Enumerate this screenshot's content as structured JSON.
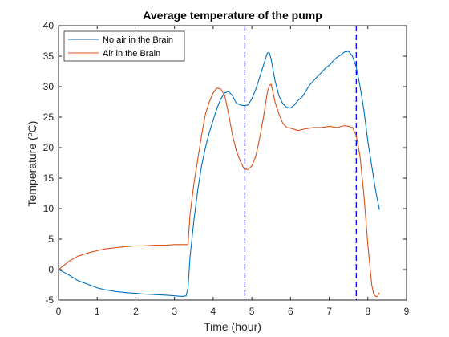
{
  "chart_data": {
    "type": "line",
    "title": "Average temperature of the pump",
    "xlabel": "Time (hour)",
    "ylabel_main": "Temperature (",
    "ylabel_sup": "o",
    "ylabel_end": "C)",
    "xlim": [
      0,
      9
    ],
    "ylim": [
      -5,
      40
    ],
    "xticks": [
      0,
      1,
      2,
      3,
      4,
      5,
      6,
      7,
      8,
      9
    ],
    "yticks": [
      -5,
      0,
      5,
      10,
      15,
      20,
      25,
      30,
      35,
      40
    ],
    "grid": false,
    "legend_position": "top-left",
    "vlines": [
      4.82,
      7.7
    ],
    "vline_color": "#0000ff",
    "series": [
      {
        "name": "No air in the Brain",
        "color": "#0072BD",
        "x": [
          0,
          0.1,
          0.3,
          0.5,
          0.8,
          1.0,
          1.2,
          1.5,
          1.8,
          2.0,
          2.2,
          2.5,
          2.8,
          3.0,
          3.2,
          3.3,
          3.35,
          3.4,
          3.5,
          3.6,
          3.7,
          3.8,
          3.9,
          4.0,
          4.1,
          4.2,
          4.3,
          4.4,
          4.5,
          4.6,
          4.7,
          4.8,
          4.9,
          5.0,
          5.1,
          5.2,
          5.3,
          5.4,
          5.45,
          5.5,
          5.6,
          5.7,
          5.8,
          5.9,
          6.0,
          6.1,
          6.2,
          6.3,
          6.4,
          6.5,
          6.6,
          6.7,
          6.8,
          6.9,
          7.0,
          7.1,
          7.2,
          7.3,
          7.4,
          7.5,
          7.6,
          7.7,
          7.8,
          7.9,
          8.0,
          8.1,
          8.2,
          8.3
        ],
        "values": [
          0,
          -0.3,
          -1,
          -1.8,
          -2.5,
          -3,
          -3.3,
          -3.6,
          -3.8,
          -3.9,
          -4.0,
          -4.1,
          -4.2,
          -4.3,
          -4.4,
          -4.3,
          -3,
          2,
          8,
          13,
          17,
          20,
          22.5,
          24.5,
          26.5,
          28,
          29,
          29.2,
          28.5,
          27.3,
          27,
          26.9,
          27,
          28,
          29.5,
          31.5,
          33.5,
          35.5,
          35.6,
          34.5,
          31,
          28.5,
          27.2,
          26.6,
          26.5,
          27,
          27.8,
          28.3,
          29.3,
          30.3,
          31,
          31.7,
          32.3,
          33,
          33.5,
          34.2,
          34.8,
          35.2,
          35.7,
          35.8,
          35,
          33.2,
          30,
          26,
          21,
          17,
          13,
          9.8
        ]
      },
      {
        "name": "Air in the Brain",
        "color": "#D95319",
        "x": [
          0,
          0.1,
          0.3,
          0.5,
          0.8,
          1.0,
          1.2,
          1.5,
          1.8,
          2.0,
          2.2,
          2.5,
          2.8,
          3.0,
          3.2,
          3.3,
          3.35,
          3.4,
          3.5,
          3.6,
          3.7,
          3.8,
          3.9,
          4.0,
          4.1,
          4.2,
          4.3,
          4.4,
          4.5,
          4.6,
          4.7,
          4.8,
          4.9,
          5.0,
          5.1,
          5.2,
          5.3,
          5.4,
          5.45,
          5.5,
          5.55,
          5.6,
          5.7,
          5.8,
          5.9,
          6.0,
          6.1,
          6.2,
          6.4,
          6.6,
          6.8,
          7.0,
          7.2,
          7.4,
          7.5,
          7.6,
          7.7,
          7.8,
          7.9,
          8.0,
          8.1,
          8.15,
          8.2,
          8.25,
          8.3
        ],
        "values": [
          0,
          0.5,
          1.5,
          2.2,
          2.8,
          3.1,
          3.4,
          3.6,
          3.8,
          3.9,
          3.9,
          4.0,
          4.0,
          4.1,
          4.1,
          4.1,
          4.1,
          9,
          14,
          18,
          22,
          25.5,
          27.5,
          29,
          29.8,
          29.6,
          28.5,
          25.5,
          22,
          19.5,
          17.8,
          16.5,
          16.4,
          17,
          18.5,
          21.5,
          25,
          29,
          30.2,
          30.4,
          29,
          27.5,
          25.5,
          24,
          23.3,
          23.2,
          23.0,
          22.8,
          23.1,
          23.3,
          23.3,
          23.5,
          23.3,
          23.6,
          23.5,
          23.3,
          22,
          18.5,
          12,
          4,
          -2.5,
          -4,
          -4.4,
          -4.4,
          -3.8
        ]
      }
    ]
  }
}
